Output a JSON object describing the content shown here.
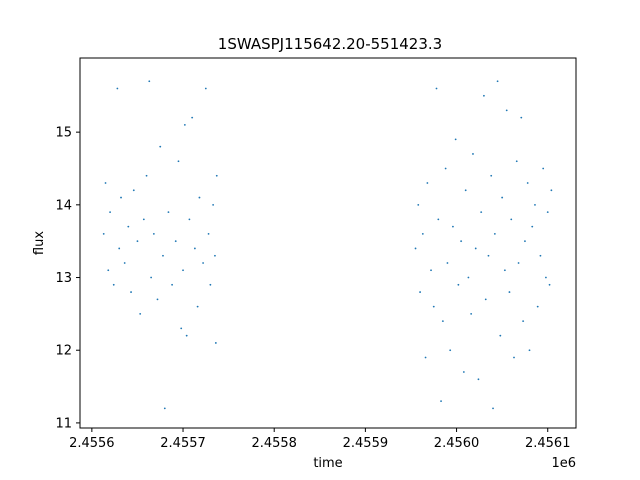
{
  "chart_data": {
    "type": "scatter",
    "title": "1SWASPJ115642.20-551423.3",
    "xlabel": "time",
    "ylabel": "flux",
    "x_offset_label": "1e6",
    "xlim": [
      2455587,
      2456131
    ],
    "ylim": [
      10.93,
      16.02
    ],
    "x_ticks": [
      2455600,
      2455700,
      2455800,
      2455900,
      2456000,
      2456100
    ],
    "x_tick_labels": [
      "2.4556",
      "2.4557",
      "2.4558",
      "2.4559",
      "2.4560",
      "2.4561"
    ],
    "y_ticks": [
      11,
      12,
      13,
      14,
      15
    ],
    "y_tick_labels": [
      "11",
      "12",
      "13",
      "14",
      "15"
    ],
    "grid": false,
    "marker_color": "#1f77b4",
    "series": [
      {
        "values": [
          {
            "x": 2455613,
            "y": 13.6
          },
          {
            "x": 2455615,
            "y": 14.3
          },
          {
            "x": 2455618,
            "y": 13.1
          },
          {
            "x": 2455620,
            "y": 13.9
          },
          {
            "x": 2455624,
            "y": 12.9
          },
          {
            "x": 2455628,
            "y": 15.6
          },
          {
            "x": 2455630,
            "y": 13.4
          },
          {
            "x": 2455632,
            "y": 14.1
          },
          {
            "x": 2455636,
            "y": 13.2
          },
          {
            "x": 2455640,
            "y": 13.7
          },
          {
            "x": 2455643,
            "y": 12.8
          },
          {
            "x": 2455646,
            "y": 14.2
          },
          {
            "x": 2455650,
            "y": 13.5
          },
          {
            "x": 2455653,
            "y": 12.5
          },
          {
            "x": 2455657,
            "y": 13.8
          },
          {
            "x": 2455660,
            "y": 14.4
          },
          {
            "x": 2455663,
            "y": 15.7
          },
          {
            "x": 2455665,
            "y": 13.0
          },
          {
            "x": 2455668,
            "y": 13.6
          },
          {
            "x": 2455672,
            "y": 12.7
          },
          {
            "x": 2455675,
            "y": 14.8
          },
          {
            "x": 2455678,
            "y": 13.3
          },
          {
            "x": 2455680,
            "y": 11.2
          },
          {
            "x": 2455684,
            "y": 13.9
          },
          {
            "x": 2455688,
            "y": 12.9
          },
          {
            "x": 2455692,
            "y": 13.5
          },
          {
            "x": 2455695,
            "y": 14.6
          },
          {
            "x": 2455698,
            "y": 12.3
          },
          {
            "x": 2455700,
            "y": 13.1
          },
          {
            "x": 2455702,
            "y": 15.1
          },
          {
            "x": 2455704,
            "y": 12.2
          },
          {
            "x": 2455707,
            "y": 13.8
          },
          {
            "x": 2455710,
            "y": 15.2
          },
          {
            "x": 2455713,
            "y": 13.4
          },
          {
            "x": 2455716,
            "y": 12.6
          },
          {
            "x": 2455718,
            "y": 14.1
          },
          {
            "x": 2455722,
            "y": 13.2
          },
          {
            "x": 2455725,
            "y": 15.6
          },
          {
            "x": 2455728,
            "y": 13.6
          },
          {
            "x": 2455730,
            "y": 12.9
          },
          {
            "x": 2455733,
            "y": 14.0
          },
          {
            "x": 2455735,
            "y": 13.3
          },
          {
            "x": 2455736,
            "y": 12.1
          },
          {
            "x": 2455737,
            "y": 14.4
          },
          {
            "x": 2455955,
            "y": 13.4
          },
          {
            "x": 2455958,
            "y": 14.0
          },
          {
            "x": 2455960,
            "y": 12.8
          },
          {
            "x": 2455963,
            "y": 13.6
          },
          {
            "x": 2455966,
            "y": 11.9
          },
          {
            "x": 2455968,
            "y": 14.3
          },
          {
            "x": 2455972,
            "y": 13.1
          },
          {
            "x": 2455975,
            "y": 12.6
          },
          {
            "x": 2455978,
            "y": 15.6
          },
          {
            "x": 2455980,
            "y": 13.8
          },
          {
            "x": 2455983,
            "y": 11.3
          },
          {
            "x": 2455985,
            "y": 12.4
          },
          {
            "x": 2455988,
            "y": 14.5
          },
          {
            "x": 2455990,
            "y": 13.2
          },
          {
            "x": 2455993,
            "y": 12.0
          },
          {
            "x": 2455996,
            "y": 13.7
          },
          {
            "x": 2455999,
            "y": 14.9
          },
          {
            "x": 2456002,
            "y": 12.9
          },
          {
            "x": 2456005,
            "y": 13.5
          },
          {
            "x": 2456008,
            "y": 11.7
          },
          {
            "x": 2456010,
            "y": 14.2
          },
          {
            "x": 2456013,
            "y": 13.0
          },
          {
            "x": 2456016,
            "y": 12.5
          },
          {
            "x": 2456018,
            "y": 14.7
          },
          {
            "x": 2456021,
            "y": 13.4
          },
          {
            "x": 2456024,
            "y": 11.6
          },
          {
            "x": 2456027,
            "y": 13.9
          },
          {
            "x": 2456030,
            "y": 15.5
          },
          {
            "x": 2456032,
            "y": 12.7
          },
          {
            "x": 2456035,
            "y": 13.3
          },
          {
            "x": 2456038,
            "y": 14.4
          },
          {
            "x": 2456040,
            "y": 11.2
          },
          {
            "x": 2456042,
            "y": 13.6
          },
          {
            "x": 2456045,
            "y": 15.7
          },
          {
            "x": 2456048,
            "y": 12.2
          },
          {
            "x": 2456050,
            "y": 14.1
          },
          {
            "x": 2456053,
            "y": 13.1
          },
          {
            "x": 2456055,
            "y": 15.3
          },
          {
            "x": 2456058,
            "y": 12.8
          },
          {
            "x": 2456060,
            "y": 13.8
          },
          {
            "x": 2456063,
            "y": 11.9
          },
          {
            "x": 2456066,
            "y": 14.6
          },
          {
            "x": 2456068,
            "y": 13.2
          },
          {
            "x": 2456071,
            "y": 15.2
          },
          {
            "x": 2456073,
            "y": 12.4
          },
          {
            "x": 2456075,
            "y": 13.5
          },
          {
            "x": 2456078,
            "y": 14.3
          },
          {
            "x": 2456080,
            "y": 12.0
          },
          {
            "x": 2456083,
            "y": 13.7
          },
          {
            "x": 2456086,
            "y": 14.0
          },
          {
            "x": 2456089,
            "y": 12.6
          },
          {
            "x": 2456092,
            "y": 13.3
          },
          {
            "x": 2456095,
            "y": 14.5
          },
          {
            "x": 2456098,
            "y": 13.0
          },
          {
            "x": 2456100,
            "y": 13.9
          },
          {
            "x": 2456102,
            "y": 12.9
          },
          {
            "x": 2456104,
            "y": 14.2
          }
        ]
      }
    ]
  }
}
